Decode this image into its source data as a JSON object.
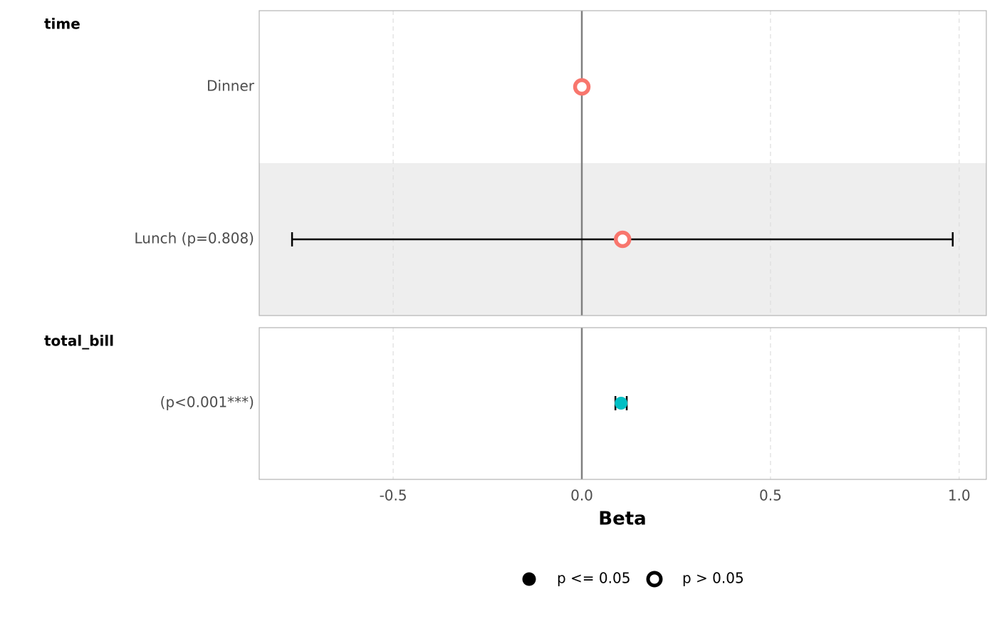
{
  "chart_data": {
    "type": "forest",
    "xlabel": "Beta",
    "xlim": [
      -0.855,
      1.072
    ],
    "xticks": [
      -0.5,
      {
        "value": 0,
        "label": "0.0"
      },
      0.5,
      {
        "value": 1,
        "label": "1.0"
      }
    ],
    "grid": true,
    "legend_position": "bottom",
    "legend": [
      {
        "name": "p <= 0.05",
        "shape": "filled"
      },
      {
        "name": "p > 0.05",
        "shape": "open"
      }
    ],
    "groups": [
      {
        "name": "time",
        "color": "#F8766D",
        "categories": [
          "Dinner",
          "Lunch (p=0.808)"
        ],
        "values": [
          0,
          0.108
        ],
        "ci_low": [
          null,
          -0.768
        ],
        "ci_high": [
          null,
          0.983
        ],
        "significant": [
          false,
          false
        ]
      },
      {
        "name": "total_bill",
        "color": "#00BFC4",
        "categories": [
          "(p<0.001***)"
        ],
        "values": [
          0.104
        ],
        "ci_low": [
          0.089
        ],
        "ci_high": [
          0.119
        ],
        "significant": [
          true
        ]
      }
    ]
  }
}
